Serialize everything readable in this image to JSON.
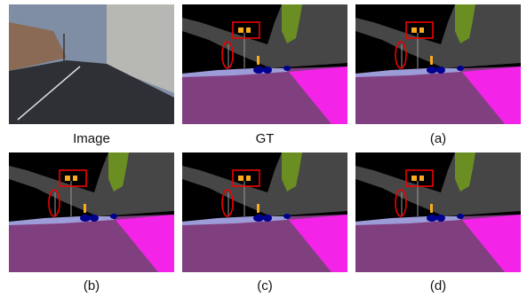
{
  "panels": [
    {
      "caption": "Image"
    },
    {
      "caption": "GT"
    },
    {
      "caption": "(a)"
    },
    {
      "caption": "(b)"
    },
    {
      "caption": "(c)"
    },
    {
      "caption": "(d)"
    }
  ]
}
